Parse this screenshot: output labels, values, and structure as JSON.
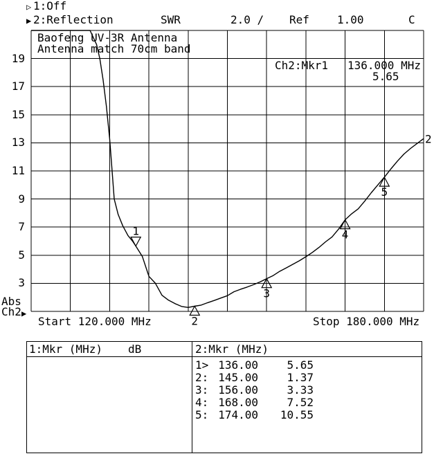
{
  "colors": {
    "fg": "#000000",
    "bg": "#ffffff"
  },
  "header": {
    "line1_marker": "▷",
    "line1_label": "1:Off",
    "line2_marker": "▶",
    "line2_label": "2:Reflection",
    "format_label": "SWR",
    "scale_label": "2.0 /",
    "ref_label": "Ref",
    "ref_value": "1.00",
    "cal_indicator": "C"
  },
  "plot": {
    "title_line1": "Baofeng UV-3R Antenna",
    "title_line2": "Antenna match 70cm band",
    "readout_label": "Ch2:Mkr1",
    "readout_freq": "136.000 MHz",
    "readout_value": "5.65",
    "abs_label": "Abs",
    "ch_label": "Ch2",
    "ch_marker": "▶",
    "start_label": "Start 120.000 MHz",
    "stop_label": "Stop 180.000 MHz",
    "trace_number": "2"
  },
  "chart_data": {
    "type": "line",
    "title": "Baofeng UV-3R Antenna",
    "subtitle": "Antenna match 70cm band",
    "x_axis_unit": "MHz",
    "x_range": [
      120,
      180
    ],
    "x_divisions": 10,
    "y_ref": 1.0,
    "y_scale_per_div": 2.0,
    "y_divisions": 10,
    "y_tick_labels": [
      19,
      17,
      15,
      13,
      11,
      9,
      7,
      5,
      3
    ],
    "grid": true,
    "series": [
      {
        "name": "2:Reflection SWR",
        "x": [
          120,
          129,
          130,
          130.5,
          131,
          131.5,
          132,
          132.3,
          132.7,
          133.3,
          134,
          134.8,
          135.5,
          136,
          137,
          138,
          139,
          140,
          141,
          142,
          143,
          144,
          145,
          146,
          147,
          148,
          149,
          150,
          151,
          152,
          153,
          154,
          155,
          156,
          157,
          158,
          159,
          160,
          161,
          162,
          163,
          164,
          165,
          166,
          167,
          168,
          169,
          170,
          171,
          172,
          173,
          174,
          175,
          176,
          177,
          178,
          179,
          180
        ],
        "y": [
          25,
          21.5,
          20,
          19,
          17.5,
          15.6,
          13.3,
          11.5,
          9.0,
          7.9,
          7.1,
          6.4,
          6.0,
          5.65,
          4.9,
          3.5,
          3.0,
          2.15,
          1.8,
          1.55,
          1.35,
          1.28,
          1.37,
          1.45,
          1.62,
          1.78,
          1.95,
          2.12,
          2.4,
          2.57,
          2.73,
          2.9,
          3.1,
          3.33,
          3.55,
          3.85,
          4.1,
          4.35,
          4.6,
          4.89,
          5.2,
          5.55,
          5.95,
          6.3,
          6.85,
          7.52,
          7.95,
          8.3,
          8.85,
          9.45,
          10.0,
          10.55,
          11.15,
          11.7,
          12.2,
          12.6,
          12.95,
          13.3
        ]
      }
    ],
    "markers": [
      {
        "label": "1",
        "freq_mhz": 136.0,
        "swr": 5.65,
        "direction": "down",
        "active": true
      },
      {
        "label": "2",
        "freq_mhz": 145.0,
        "swr": 1.37,
        "direction": "up",
        "active": false
      },
      {
        "label": "3",
        "freq_mhz": 156.0,
        "swr": 3.33,
        "direction": "up",
        "active": false
      },
      {
        "label": "4",
        "freq_mhz": 168.0,
        "swr": 7.52,
        "direction": "up",
        "active": false
      },
      {
        "label": "5",
        "freq_mhz": 174.0,
        "swr": 10.55,
        "direction": "up",
        "active": false
      }
    ]
  },
  "table": {
    "left_header_title": "1:Mkr (MHz)",
    "left_header_unit": "dB",
    "right_header_title": "2:Mkr (MHz)",
    "rows": [
      {
        "n": "1>",
        "freq": "136.00",
        "value": "5.65"
      },
      {
        "n": "2:",
        "freq": "145.00",
        "value": "1.37"
      },
      {
        "n": "3:",
        "freq": "156.00",
        "value": "3.33"
      },
      {
        "n": "4:",
        "freq": "168.00",
        "value": "7.52"
      },
      {
        "n": "5:",
        "freq": "174.00",
        "value": "10.55"
      }
    ]
  }
}
